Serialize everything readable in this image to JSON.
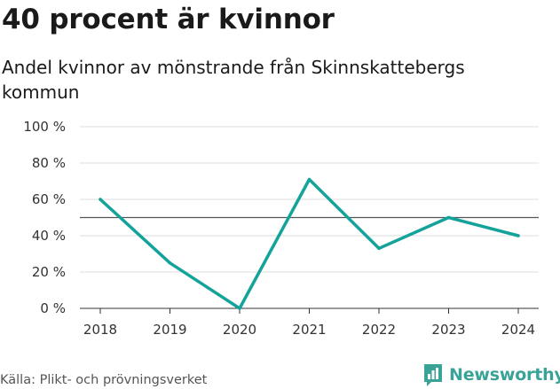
{
  "header": {
    "title": "40 procent är kvinnor",
    "subtitle": "Andel kvinnor av mönstrande från Skinnskattebergs kommun"
  },
  "footer": {
    "source": "Källa: Plikt- och prövningsverket",
    "brand": "Newsworthy"
  },
  "colors": {
    "line": "#13a39a",
    "reference_line": "#555555",
    "grid": "#dddddd",
    "brand": "#3aa398"
  },
  "chart_data": {
    "type": "line",
    "title": "40 procent är kvinnor",
    "subtitle": "Andel kvinnor av mönstrande från Skinnskattebergs kommun",
    "x": [
      "2018",
      "2019",
      "2020",
      "2021",
      "2022",
      "2023",
      "2024"
    ],
    "series": [
      {
        "name": "Andel kvinnor",
        "values": [
          60,
          25,
          0,
          71,
          33,
          50,
          40
        ]
      }
    ],
    "reference_line": 50,
    "ylim": [
      0,
      100
    ],
    "yticks": [
      0,
      20,
      40,
      60,
      80,
      100
    ],
    "ytick_labels": [
      "0 %",
      "20 %",
      "40 %",
      "60 %",
      "80 %",
      "100 %"
    ],
    "xlabel": "",
    "ylabel": "",
    "grid": true,
    "legend": "none"
  }
}
